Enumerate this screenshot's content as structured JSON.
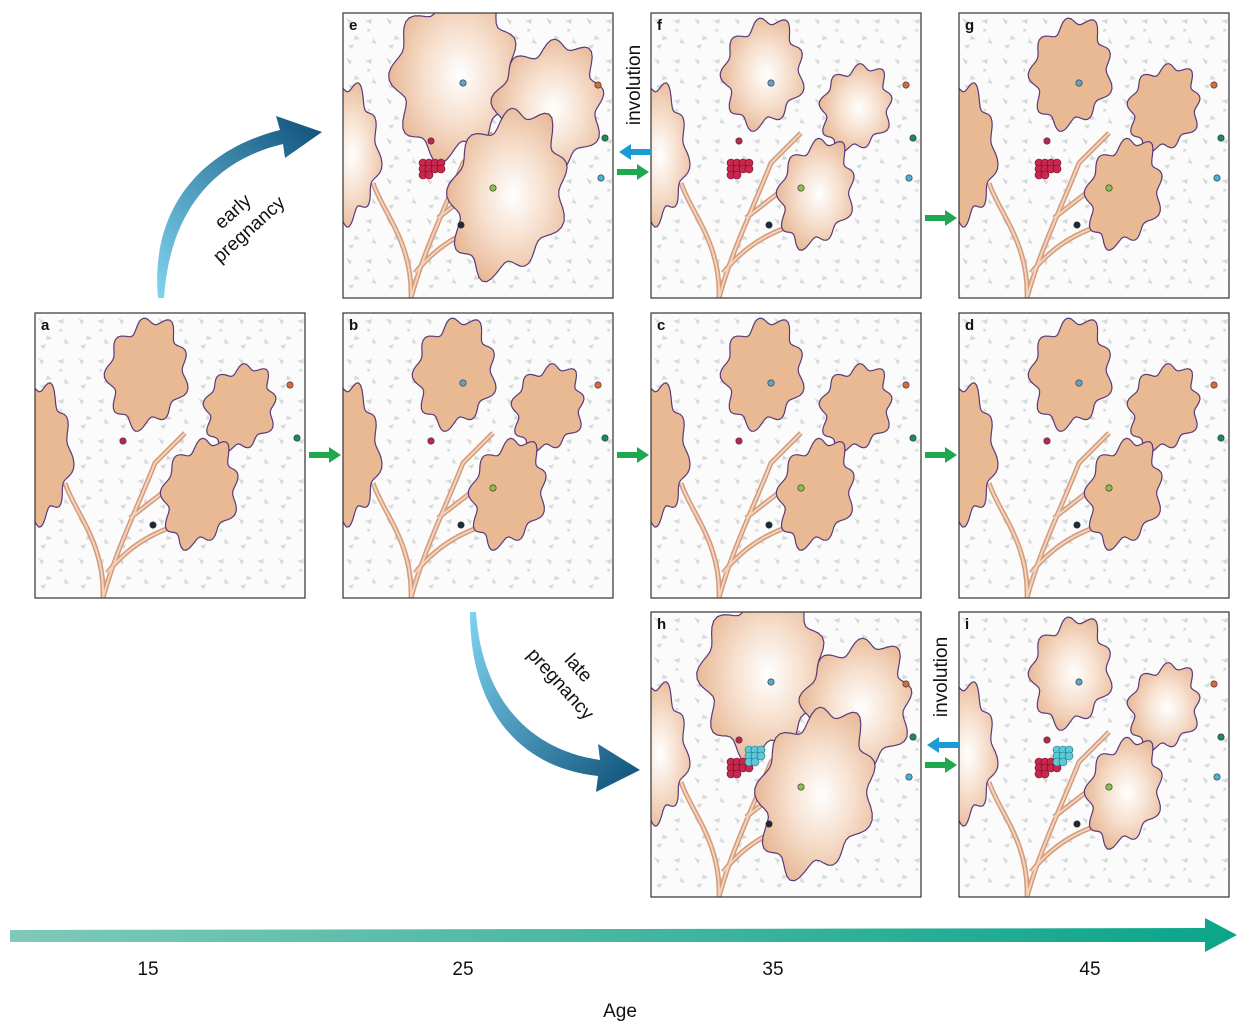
{
  "panels": [
    {
      "label": "a"
    },
    {
      "label": "b"
    },
    {
      "label": "c"
    },
    {
      "label": "d"
    },
    {
      "label": "e"
    },
    {
      "label": "f"
    },
    {
      "label": "g"
    },
    {
      "label": "h"
    },
    {
      "label": "i"
    }
  ],
  "transitions": {
    "early_pregnancy": [
      "early",
      "pregnancy"
    ],
    "late_pregnancy": [
      "late",
      "pregnancy"
    ],
    "involution_top": "involution",
    "involution_bottom": "involution"
  },
  "age_axis": {
    "label": "Age",
    "ticks": [
      15,
      25,
      35,
      45
    ]
  }
}
